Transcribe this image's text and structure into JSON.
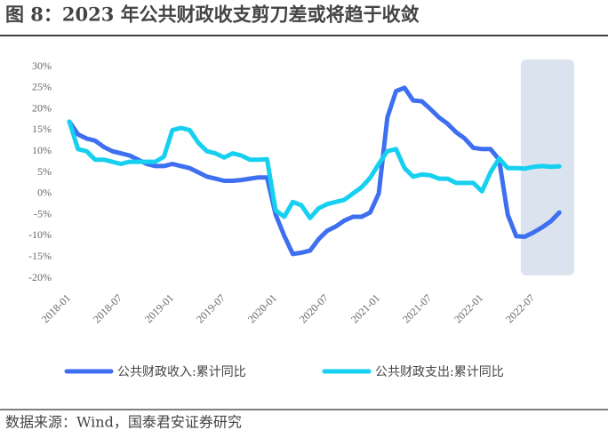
{
  "chart_data": {
    "type": "line",
    "title": "图 8：2023 年公共财政收支剪刀差或将趋于收敛",
    "source": "数据来源：Wind，国泰君安证券研究",
    "categories": [
      "2018-01",
      null,
      null,
      null,
      null,
      null,
      "2018-07",
      null,
      null,
      null,
      null,
      null,
      "2019-01",
      null,
      null,
      null,
      null,
      null,
      "2019-07",
      null,
      null,
      null,
      null,
      null,
      "2020-01",
      null,
      null,
      null,
      null,
      null,
      "2020-07",
      null,
      null,
      null,
      null,
      null,
      "2021-01",
      null,
      null,
      null,
      null,
      null,
      "2021-07",
      null,
      null,
      null,
      null,
      null,
      "2022-01",
      null,
      null,
      null,
      null,
      null,
      "2022-07",
      null,
      null,
      null
    ],
    "series": [
      {
        "name": "公共财政收入:累计同比",
        "color": "#3d6ff0",
        "values": [
          17,
          14,
          13,
          12.5,
          11,
          10,
          9.5,
          9,
          8,
          7,
          6.5,
          6.5,
          7,
          6.5,
          6,
          5,
          4,
          3.5,
          3,
          3,
          3.2,
          3.5,
          3.8,
          3.8,
          -5,
          -10,
          -14.3,
          -14,
          -13.5,
          -10.8,
          -8.8,
          -7.8,
          -6.4,
          -5.5,
          -5.5,
          -4.5,
          0,
          18,
          24.2,
          25,
          22,
          21.8,
          20,
          18,
          16.5,
          14.5,
          13,
          10.8,
          10.5,
          10.5,
          8,
          -5,
          -10.1,
          -10.2,
          -9.2,
          -8,
          -6.6,
          -4.5
        ]
      },
      {
        "name": "公共财政支出:累计同比",
        "color": "#17d0f0",
        "values": [
          17,
          10.5,
          10,
          8,
          8,
          7.5,
          7,
          7.5,
          7.5,
          7.5,
          7.5,
          8.7,
          15,
          15.5,
          15,
          12,
          10,
          9.5,
          8.5,
          9.5,
          9,
          8,
          8,
          8.1,
          -4,
          -5.5,
          -2,
          -2.8,
          -5.8,
          -3.5,
          -2.5,
          -2,
          -1.5,
          0,
          1.5,
          3.7,
          7,
          10,
          10.5,
          6,
          4,
          4.5,
          4.3,
          3.5,
          3.5,
          2.5,
          2.5,
          2.5,
          0.5,
          5,
          8.3,
          6,
          6,
          5.9,
          6.3,
          6.5,
          6.3,
          6.4
        ]
      }
    ],
    "ylim": [
      -20,
      30
    ],
    "yticks": [
      {
        "value": -20,
        "label": "-20%"
      },
      {
        "value": -15,
        "label": "-15%"
      },
      {
        "value": -10,
        "label": "-10%"
      },
      {
        "value": -5,
        "label": "-5%"
      },
      {
        "value": 0,
        "label": "0%"
      },
      {
        "value": 5,
        "label": "5%"
      },
      {
        "value": 10,
        "label": "10%"
      },
      {
        "value": 15,
        "label": "15%"
      },
      {
        "value": 20,
        "label": "20%"
      },
      {
        "value": 25,
        "label": "25%"
      },
      {
        "value": 30,
        "label": "30%"
      }
    ]
  }
}
